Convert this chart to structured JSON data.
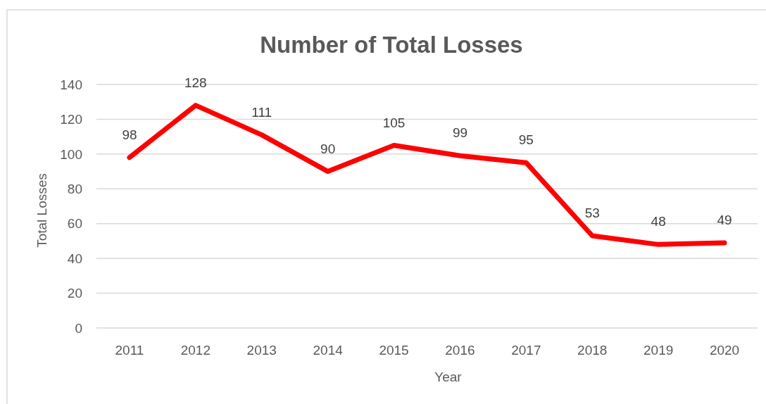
{
  "chart_data": {
    "type": "line",
    "title": "Number of Total Losses",
    "xlabel": "Year",
    "ylabel": "Total Losses",
    "categories": [
      "2011",
      "2012",
      "2013",
      "2014",
      "2015",
      "2016",
      "2017",
      "2018",
      "2019",
      "2020"
    ],
    "series": [
      {
        "color": "#ff0000",
        "values": [
          98,
          128,
          111,
          90,
          105,
          99,
          95,
          53,
          48,
          49
        ]
      }
    ],
    "ylim": [
      0,
      140
    ],
    "yticks": [
      0,
      20,
      40,
      60,
      80,
      100,
      120,
      140
    ],
    "grid": "y",
    "data_labels": true,
    "marker": "none",
    "line_style": "solid"
  }
}
